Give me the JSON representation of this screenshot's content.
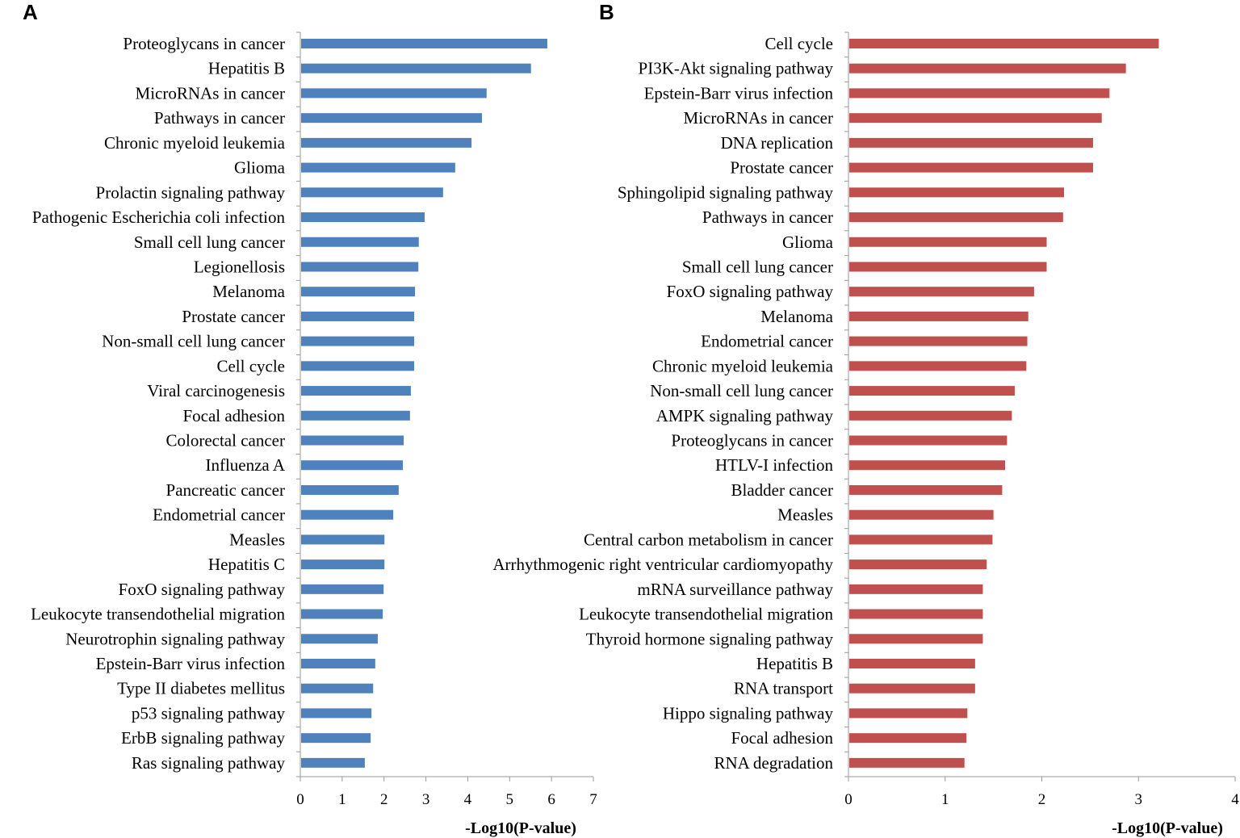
{
  "chart_data": [
    {
      "type": "bar",
      "orientation": "horizontal",
      "panel_label": "A",
      "color": "#4f81bd",
      "xlabel": "-Log10(P-value)",
      "xlim": [
        0,
        7
      ],
      "xticks": [
        "0",
        "1",
        "2",
        "3",
        "4",
        "5",
        "6",
        "7"
      ],
      "grid": false,
      "categories": [
        "Proteoglycans in cancer",
        "Hepatitis B",
        "MicroRNAs in cancer",
        "Pathways in cancer",
        "Chronic myeloid leukemia",
        "Glioma",
        "Prolactin signaling pathway",
        "Pathogenic Escherichia coli infection",
        "Small cell lung cancer",
        "Legionellosis",
        "Melanoma",
        "Prostate cancer",
        "Non-small cell lung cancer",
        "Cell cycle",
        "Viral carcinogenesis",
        "Focal adhesion",
        "Colorectal cancer",
        "Influenza A",
        "Pancreatic cancer",
        "Endometrial cancer",
        "Measles",
        "Hepatitis C",
        "FoxO signaling pathway",
        "Leukocyte transendothelial migration",
        "Neurotrophin signaling pathway",
        "Epstein-Barr virus infection",
        "Type II diabetes mellitus",
        "p53 signaling pathway",
        "ErbB signaling pathway",
        "Ras signaling pathway"
      ],
      "values": [
        5.9,
        5.51,
        4.45,
        4.34,
        4.09,
        3.7,
        3.41,
        2.97,
        2.83,
        2.82,
        2.74,
        2.72,
        2.72,
        2.72,
        2.64,
        2.62,
        2.47,
        2.45,
        2.35,
        2.22,
        2.01,
        2.01,
        1.99,
        1.97,
        1.85,
        1.79,
        1.74,
        1.7,
        1.68,
        1.54
      ]
    },
    {
      "type": "bar",
      "orientation": "horizontal",
      "panel_label": "B",
      "color": "#c0504d",
      "xlabel": "-Log10(P-value)",
      "xlim": [
        0,
        4
      ],
      "xticks": [
        "0",
        "1",
        "2",
        "3",
        "4"
      ],
      "grid": false,
      "categories": [
        "Cell cycle",
        "PI3K-Akt signaling pathway",
        "Epstein-Barr virus infection",
        "MicroRNAs in cancer",
        "DNA replication",
        "Prostate cancer",
        "Sphingolipid signaling pathway",
        "Pathways in cancer",
        "Glioma",
        "Small cell lung cancer",
        "FoxO signaling pathway",
        "Melanoma",
        "Endometrial cancer",
        "Chronic myeloid leukemia",
        "Non-small cell lung cancer",
        "AMPK signaling pathway",
        "Proteoglycans in cancer",
        "HTLV-I infection",
        "Bladder cancer",
        "Measles",
        "Central carbon metabolism in cancer",
        "Arrhythmogenic right ventricular cardiomyopathy",
        "mRNA surveillance pathway",
        "Leukocyte transendothelial migration",
        "Thyroid hormone signaling pathway",
        "Hepatitis B",
        "RNA transport",
        "Hippo signaling pathway",
        "Focal adhesion",
        "RNA degradation"
      ],
      "values": [
        3.21,
        2.87,
        2.7,
        2.62,
        2.53,
        2.53,
        2.23,
        2.22,
        2.05,
        2.05,
        1.92,
        1.86,
        1.85,
        1.84,
        1.72,
        1.69,
        1.64,
        1.62,
        1.59,
        1.5,
        1.49,
        1.43,
        1.39,
        1.39,
        1.39,
        1.31,
        1.31,
        1.23,
        1.22,
        1.2
      ]
    }
  ]
}
